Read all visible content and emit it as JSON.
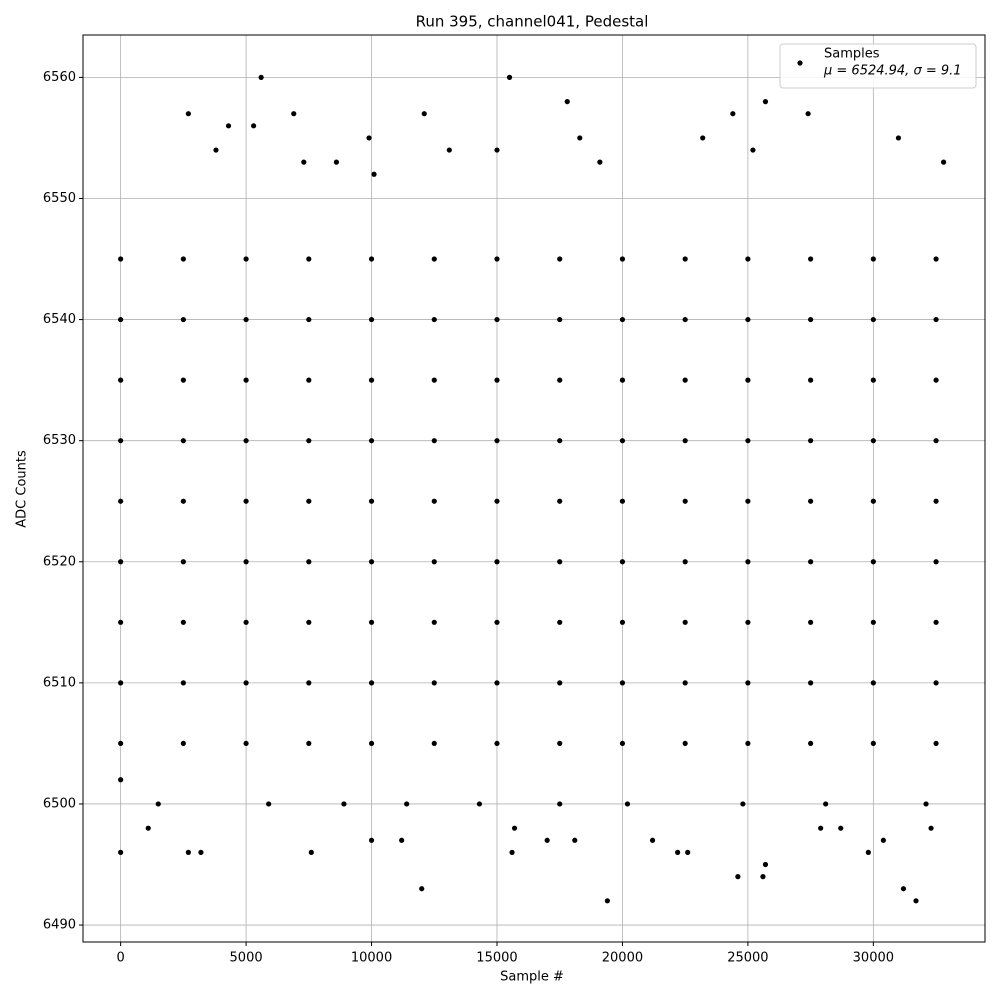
{
  "chart_data": {
    "type": "scatter",
    "title": "Run 395, channel041, Pedestal",
    "x_label": "Sample #",
    "y_label": "ADC Counts",
    "xlim": [
      -1500,
      34450
    ],
    "ylim": [
      6488.6,
      6563.5
    ],
    "xticks": [
      0,
      5000,
      10000,
      15000,
      20000,
      25000,
      30000
    ],
    "yticks": [
      6490,
      6500,
      6510,
      6520,
      6530,
      6540,
      6550,
      6560
    ],
    "grid": true,
    "legend_position": "upper right",
    "legend_note": "μ = 6524.94, σ = 9.1",
    "x": [
      0,
      0,
      2700,
      5600,
      15500,
      19400,
      31700,
      12000,
      24600,
      25600,
      25700,
      31200,
      25700,
      17800,
      27400,
      4300,
      5300,
      12100,
      24400,
      6900,
      3800,
      9900,
      13100,
      1100,
      3200,
      2700,
      7600,
      10000,
      11200,
      15600,
      15700,
      17000,
      18100,
      21200,
      22200,
      22600,
      27900,
      28700,
      29800,
      30400,
      32300,
      1500,
      5900,
      8900,
      11400,
      14300,
      17500,
      20200,
      24800,
      28100,
      32100,
      7300,
      8600,
      10100,
      15000,
      18300,
      19100,
      23200,
      25200,
      31000,
      32800,
      0,
      0,
      0,
      0,
      0,
      0,
      0,
      0,
      0,
      2500,
      2500,
      2500,
      2500,
      2500,
      2500,
      2500,
      2500,
      2500,
      5000,
      5000,
      5000,
      5000,
      5000,
      5000,
      5000,
      5000,
      5000,
      7500,
      7500,
      7500,
      7500,
      7500,
      7500,
      7500,
      7500,
      7500,
      10000,
      10000,
      10000,
      10000,
      10000,
      10000,
      10000,
      10000,
      10000,
      12500,
      12500,
      12500,
      12500,
      12500,
      12500,
      12500,
      12500,
      12500,
      15000,
      15000,
      15000,
      15000,
      15000,
      15000,
      15000,
      15000,
      15000,
      17500,
      17500,
      17500,
      17500,
      17500,
      17500,
      17500,
      17500,
      17500,
      20000,
      20000,
      20000,
      20000,
      20000,
      20000,
      20000,
      20000,
      20000,
      22500,
      22500,
      22500,
      22500,
      22500,
      22500,
      22500,
      22500,
      22500,
      25000,
      25000,
      25000,
      25000,
      25000,
      25000,
      25000,
      25000,
      25000,
      27500,
      27500,
      27500,
      27500,
      27500,
      27500,
      27500,
      27500,
      27500,
      30000,
      30000,
      30000,
      30000,
      30000,
      30000,
      30000,
      30000,
      30000,
      32500,
      32500,
      32500,
      32500,
      32500,
      32500,
      32500,
      32500,
      32500
    ],
    "series": [
      {
        "name": "Samples",
        "color": "#000000",
        "values": [
          6496,
          6502,
          6557,
          6560,
          6560,
          6492,
          6492,
          6493,
          6494,
          6494,
          6495,
          6493,
          6558,
          6558,
          6557,
          6556,
          6556,
          6557,
          6557,
          6557,
          6554,
          6555,
          6554,
          6498,
          6496,
          6496,
          6496,
          6497,
          6497,
          6496,
          6498,
          6497,
          6497,
          6497,
          6496,
          6496,
          6498,
          6498,
          6496,
          6497,
          6498,
          6500,
          6500,
          6500,
          6500,
          6500,
          6500,
          6500,
          6500,
          6500,
          6500,
          6553,
          6553,
          6552,
          6554,
          6555,
          6553,
          6555,
          6554,
          6555,
          6553,
          6505,
          6510,
          6515,
          6520,
          6525,
          6530,
          6535,
          6540,
          6545,
          6505,
          6510,
          6515,
          6520,
          6525,
          6530,
          6535,
          6540,
          6545,
          6505,
          6510,
          6515,
          6520,
          6525,
          6530,
          6535,
          6540,
          6545,
          6505,
          6510,
          6515,
          6520,
          6525,
          6530,
          6535,
          6540,
          6545,
          6505,
          6510,
          6515,
          6520,
          6525,
          6530,
          6535,
          6540,
          6545,
          6505,
          6510,
          6515,
          6520,
          6525,
          6530,
          6535,
          6540,
          6545,
          6505,
          6510,
          6515,
          6520,
          6525,
          6530,
          6535,
          6540,
          6545,
          6505,
          6510,
          6515,
          6520,
          6525,
          6530,
          6535,
          6540,
          6545,
          6505,
          6510,
          6515,
          6520,
          6525,
          6530,
          6535,
          6540,
          6545,
          6505,
          6510,
          6515,
          6520,
          6525,
          6530,
          6535,
          6540,
          6545,
          6505,
          6510,
          6515,
          6520,
          6525,
          6530,
          6535,
          6540,
          6545,
          6505,
          6510,
          6515,
          6520,
          6525,
          6530,
          6535,
          6540,
          6545,
          6505,
          6510,
          6515,
          6520,
          6525,
          6530,
          6535,
          6540,
          6545,
          6505,
          6510,
          6515,
          6520,
          6525,
          6530,
          6535,
          6540,
          6545
        ]
      }
    ]
  }
}
